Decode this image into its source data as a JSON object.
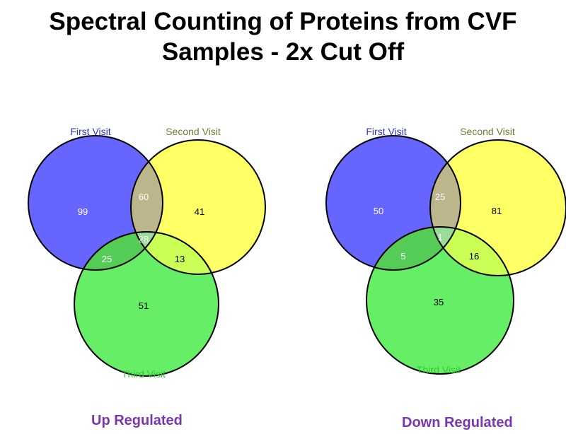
{
  "title": {
    "line1": "Spectral Counting of Proteins from CVF",
    "line2": "Samples - 2x Cut Off"
  },
  "colors": {
    "first_visit": "#6666ff",
    "second_visit": "#ffff66",
    "third_visit": "#66ee66",
    "first_second_overlap": "#bdb58c",
    "first_third_overlap": "#55cc55",
    "second_third_overlap": "#ccff55",
    "center_overlap": "#99dd99",
    "first_label": "#3333cc",
    "second_label": "#777733",
    "third_label": "#33cc33",
    "caption": "#7a36b0"
  },
  "diagrams": [
    {
      "caption": "Up Regulated",
      "labels": {
        "first": "First Visit",
        "second": "Second Visit",
        "third": "Third Visit"
      },
      "values": {
        "first_only": "99",
        "second_only": "41",
        "third_only": "51",
        "first_second": "60",
        "first_third": "25",
        "second_third": "13",
        "all": "28"
      }
    },
    {
      "caption": "Down Regulated",
      "labels": {
        "first": "First Visit",
        "second": "Second Visit",
        "third": "Third Visit"
      },
      "values": {
        "first_only": "50",
        "second_only": "81",
        "third_only": "35",
        "first_second": "25",
        "first_third": "5",
        "second_third": "16",
        "all": "1"
      }
    }
  ]
}
